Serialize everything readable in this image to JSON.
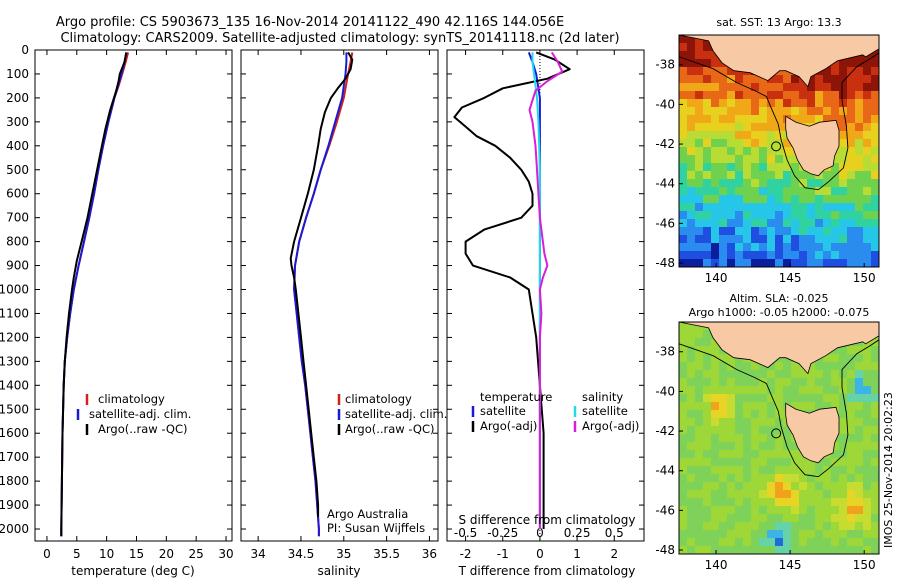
{
  "header": {
    "line1": "Argo profile: CS 5903673_135 16-Nov-2014 20141122_490 42.116S 144.056E",
    "line2": "Climatology: CARS2009. Satellite-adjusted climatology: synTS_20141118.nc (2d later)"
  },
  "colors": {
    "climatology": "#d21f1f",
    "satellite": "#1a1ad6",
    "argo": "#000000",
    "satellite_diff_S": "#22d8ee",
    "argo_diff_S": "#d81fd8"
  },
  "legend": {
    "climatology": "climatology",
    "satellite": "satellite-adj. clim.",
    "argo": "Argo(..raw -QC)",
    "diff_temp_header": "temperature",
    "diff_sal_header": "salinity",
    "diff_satellite": "satellite",
    "diff_argo": "Argo(-adj)"
  },
  "annotations": {
    "argo_aus": "Argo Australia",
    "pi": "PI: Susan Wijffels",
    "imos": "IMOS 25-Nov-2014 20:02:23"
  },
  "maps": {
    "sst": {
      "title": "sat. SST: 13 Argo: 13.3"
    },
    "sla": {
      "title1": "Altim. SLA: -0.025",
      "title2": "Argo h1000: -0.05 h2000: -0.075"
    },
    "x_ticks": [
      "140",
      "145",
      "150"
    ],
    "y_ticks": [
      "-38",
      "-40",
      "-42",
      "-44",
      "-46",
      "-48"
    ],
    "argo_lon": 144.056,
    "argo_lat": -42.116
  },
  "chart_data": [
    {
      "type": "line",
      "xlabel": "temperature (deg C)",
      "ylabel": "",
      "xlim": [
        -2,
        31
      ],
      "ylim": [
        2050,
        0
      ],
      "x_ticks": [
        "0",
        "5",
        "10",
        "15",
        "20",
        "25",
        "30"
      ],
      "y_ticks": [
        "0",
        "100",
        "200",
        "300",
        "400",
        "500",
        "600",
        "700",
        "800",
        "900",
        "1000",
        "1100",
        "1200",
        "1300",
        "1400",
        "1500",
        "1600",
        "1700",
        "1800",
        "1900",
        "2000"
      ],
      "series": [
        {
          "name": "climatology",
          "depth": [
            10,
            50,
            100,
            150,
            200,
            300,
            400,
            500,
            600,
            700,
            800,
            900,
            1000,
            1100,
            1200,
            1300,
            1400,
            1600,
            1800,
            2000,
            2030
          ],
          "values": [
            13.6,
            13.2,
            12.6,
            12.0,
            11.3,
            10.3,
            9.4,
            8.6,
            7.9,
            7.1,
            6.2,
            5.3,
            4.5,
            3.9,
            3.4,
            3.0,
            2.8,
            2.6,
            2.5,
            2.4,
            2.4
          ]
        },
        {
          "name": "satellite-adj. clim.",
          "depth": [
            10,
            50,
            100,
            150,
            200,
            300,
            400,
            500,
            600,
            700,
            800,
            900,
            1000,
            1100,
            1200,
            1300,
            1400,
            1600,
            1800,
            2000,
            2030
          ],
          "values": [
            13.3,
            13.0,
            12.5,
            11.9,
            11.3,
            10.3,
            9.4,
            8.6,
            7.9,
            7.1,
            6.2,
            5.3,
            4.5,
            3.9,
            3.4,
            3.0,
            2.8,
            2.6,
            2.5,
            2.4,
            2.4
          ]
        },
        {
          "name": "Argo(..raw -QC)",
          "depth": [
            10,
            50,
            100,
            130,
            170,
            250,
            330,
            400,
            500,
            600,
            700,
            800,
            880,
            950,
            1000,
            1100,
            1200,
            1300,
            1400,
            1600,
            1800,
            2000,
            2030
          ],
          "values": [
            13.3,
            13.0,
            12.2,
            12.0,
            11.6,
            10.6,
            9.8,
            9.2,
            8.4,
            7.6,
            6.8,
            5.8,
            5.0,
            4.5,
            4.2,
            3.7,
            3.3,
            3.0,
            2.8,
            2.6,
            2.5,
            2.4,
            2.4
          ]
        }
      ]
    },
    {
      "type": "line",
      "xlabel": "salinity",
      "ylabel": "",
      "xlim": [
        33.8,
        36.1
      ],
      "ylim": [
        2050,
        0
      ],
      "x_ticks": [
        "34",
        "34.5",
        "35",
        "35.5",
        "36"
      ],
      "series": [
        {
          "name": "climatology",
          "depth": [
            10,
            50,
            100,
            200,
            300,
            400,
            500,
            600,
            700,
            800,
            900,
            1000,
            1100,
            1200,
            1300,
            1400,
            1500,
            1600,
            1700,
            1800,
            1900,
            2000,
            2030
          ],
          "values": [
            35.1,
            35.08,
            35.05,
            35.0,
            34.92,
            34.83,
            34.73,
            34.65,
            34.56,
            34.48,
            34.43,
            34.42,
            34.45,
            34.48,
            34.51,
            34.55,
            34.58,
            34.61,
            34.64,
            34.67,
            34.69,
            34.71,
            34.71
          ]
        },
        {
          "name": "satellite-adj. clim.",
          "depth": [
            10,
            50,
            100,
            200,
            300,
            400,
            500,
            600,
            700,
            800,
            900,
            1000,
            1100,
            1200,
            1300,
            1400,
            1500,
            1600,
            1700,
            1800,
            1900,
            2000,
            2030
          ],
          "values": [
            35.03,
            35.03,
            35.02,
            34.98,
            34.9,
            34.82,
            34.73,
            34.65,
            34.56,
            34.48,
            34.43,
            34.42,
            34.45,
            34.48,
            34.51,
            34.55,
            34.58,
            34.61,
            34.64,
            34.67,
            34.69,
            34.71,
            34.71
          ]
        },
        {
          "name": "Argo(..raw -QC)",
          "depth": [
            10,
            40,
            80,
            120,
            160,
            200,
            260,
            330,
            400,
            500,
            600,
            700,
            800,
            870,
            900,
            950,
            1000,
            1100,
            1200,
            1300,
            1400,
            1500,
            1600,
            1700,
            1800,
            1900,
            1950
          ],
          "values": [
            35.05,
            35.1,
            35.08,
            35.02,
            34.93,
            34.85,
            34.78,
            34.73,
            34.7,
            34.65,
            34.58,
            34.5,
            34.42,
            34.38,
            34.39,
            34.42,
            34.44,
            34.47,
            34.5,
            34.53,
            34.56,
            34.59,
            34.62,
            34.65,
            34.68,
            34.7,
            34.7
          ]
        }
      ]
    },
    {
      "type": "line",
      "xlabel": "T difference from climatology",
      "title": "S difference from climatology",
      "xlim": [
        -2.5,
        2.8
      ],
      "ylim": [
        2050,
        0
      ],
      "x_ticks": [
        "-2",
        "-1",
        "0",
        "1",
        "2"
      ],
      "x2_ticks": [
        "-0.5",
        "-0.25",
        "0",
        "0.25",
        "0.5"
      ],
      "series": [
        {
          "name": "satellite (temperature)",
          "depth": [
            10,
            50,
            100,
            200,
            300,
            500,
            800,
            1000,
            1500,
            2000
          ],
          "values": [
            -0.3,
            -0.2,
            -0.1,
            0,
            0,
            0,
            0,
            0,
            0,
            0
          ]
        },
        {
          "name": "Argo(-adj) (temperature)",
          "depth": [
            10,
            40,
            80,
            120,
            160,
            200,
            240,
            280,
            320,
            360,
            400,
            450,
            500,
            550,
            600,
            650,
            700,
            750,
            800,
            850,
            900,
            950,
            1000,
            1100,
            1200,
            1400,
            1600,
            1800,
            2000
          ],
          "values": [
            -0.1,
            0.4,
            0.8,
            0.2,
            -1.0,
            -1.5,
            -2.1,
            -2.3,
            -2.0,
            -1.7,
            -1.2,
            -0.8,
            -0.5,
            -0.3,
            -0.2,
            -0.2,
            -0.5,
            -1.5,
            -2.0,
            -2.0,
            -1.8,
            -0.8,
            -0.3,
            -0.2,
            -0.1,
            0,
            0.1,
            0.1,
            0.1
          ]
        },
        {
          "name": "satellite (salinity)",
          "depth": [
            10,
            50,
            100,
            200,
            300,
            500,
            800,
            1000,
            1500,
            2000
          ],
          "values": [
            -0.05,
            -0.05,
            -0.04,
            -0.02,
            -0.01,
            0,
            0,
            0,
            0,
            0
          ]
        },
        {
          "name": "Argo(-adj) (salinity)",
          "depth": [
            10,
            50,
            90,
            130,
            170,
            210,
            250,
            300,
            400,
            500,
            600,
            700,
            800,
            850,
            900,
            950,
            1000,
            1100,
            1200,
            1400,
            1600,
            1800,
            2000
          ],
          "values": [
            0.08,
            0.12,
            0.15,
            0.05,
            -0.03,
            -0.05,
            -0.07,
            -0.05,
            -0.03,
            -0.02,
            -0.01,
            0,
            0.02,
            0.03,
            0.05,
            0.02,
            0.0,
            0.01,
            0.0,
            0.0,
            0.0,
            0.0,
            0.0
          ]
        }
      ]
    },
    {
      "type": "heatmap",
      "title": "sat. SST: 13 Argo: 13.3",
      "xlim": [
        137.5,
        151
      ],
      "ylim": [
        -48.2,
        -36.5
      ],
      "x_ticks": [
        "140",
        "145",
        "150"
      ],
      "y_ticks": [
        "-38",
        "-40",
        "-42",
        "-44",
        "-46",
        "-48"
      ]
    },
    {
      "type": "heatmap",
      "title": "Altim. SLA: -0.025",
      "subtitle": "Argo h1000: -0.05 h2000: -0.075",
      "xlim": [
        137.5,
        151
      ],
      "ylim": [
        -48.2,
        -36.5
      ],
      "x_ticks": [
        "140",
        "145",
        "150"
      ],
      "y_ticks": [
        "-38",
        "-40",
        "-42",
        "-44",
        "-46",
        "-48"
      ]
    }
  ]
}
